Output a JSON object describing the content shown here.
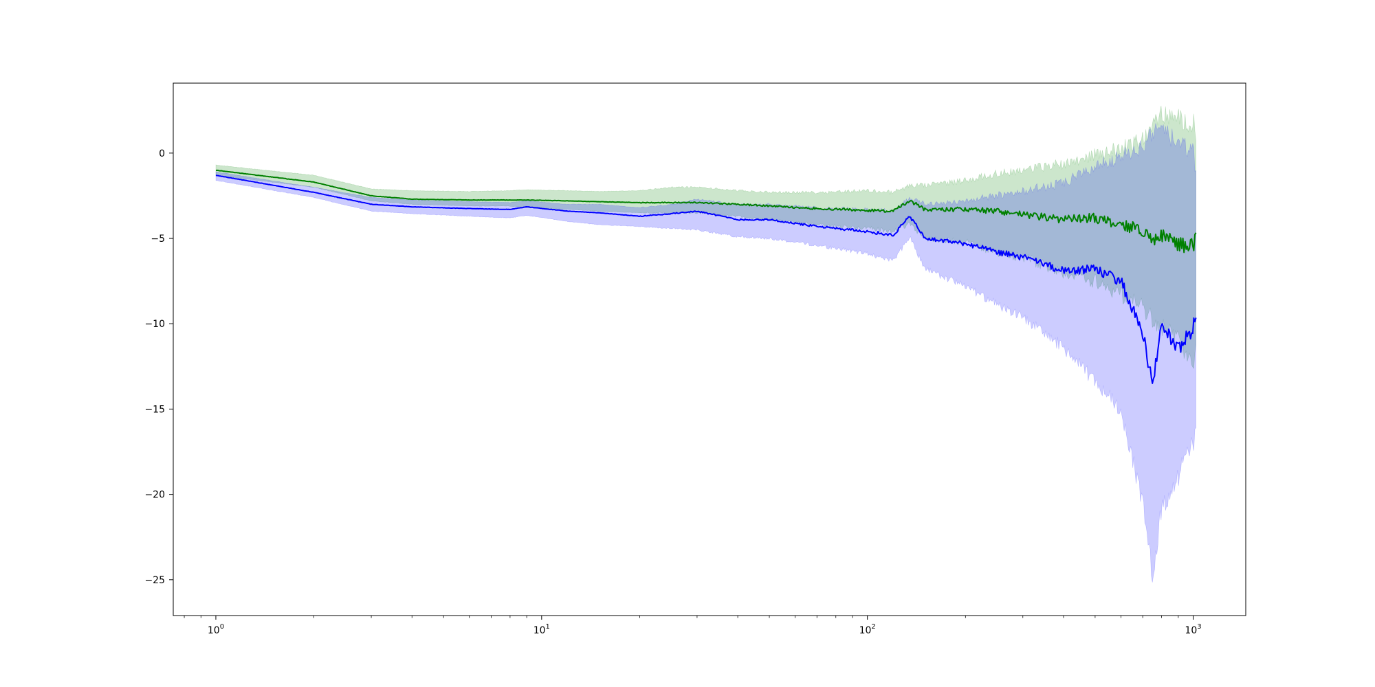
{
  "chart_data": {
    "type": "line",
    "title": "",
    "xlabel": "",
    "ylabel": "",
    "xscale": "log",
    "xlim": [
      0.74,
      1450
    ],
    "ylim": [
      -27.1,
      4.1
    ],
    "grid": false,
    "legend": "none",
    "x_ticks": [
      {
        "value": 1,
        "base": "10",
        "exp": "0"
      },
      {
        "value": 10,
        "base": "10",
        "exp": "1"
      },
      {
        "value": 100,
        "base": "10",
        "exp": "2"
      },
      {
        "value": 1000,
        "base": "10",
        "exp": "3"
      }
    ],
    "y_ticks": [
      {
        "value": 0,
        "label": "0"
      },
      {
        "value": -5,
        "label": "−5"
      },
      {
        "value": -10,
        "label": "−10"
      },
      {
        "value": -15,
        "label": "−15"
      },
      {
        "value": -20,
        "label": "−20"
      },
      {
        "value": -25,
        "label": "−25"
      }
    ],
    "x": [
      1,
      2,
      3,
      4,
      6,
      8,
      9,
      12,
      15,
      20,
      25,
      30,
      40,
      50,
      70,
      100,
      120,
      135,
      150,
      200,
      250,
      300,
      400,
      500,
      600,
      700,
      750,
      800,
      900,
      1000,
      1020
    ],
    "series": [
      {
        "color": "#008000",
        "band_color": "#008000",
        "band_opacity": 0.2,
        "values": [
          -1.0,
          -1.7,
          -2.5,
          -2.7,
          -2.75,
          -2.75,
          -2.75,
          -2.8,
          -2.85,
          -2.9,
          -2.9,
          -2.9,
          -3.0,
          -3.1,
          -3.25,
          -3.35,
          -3.4,
          -2.8,
          -3.3,
          -3.3,
          -3.4,
          -3.6,
          -3.9,
          -3.8,
          -4.2,
          -4.5,
          -5.2,
          -4.8,
          -5.3,
          -5.5,
          -5.0
        ],
        "upper": [
          -0.7,
          -1.3,
          -2.1,
          -2.2,
          -2.25,
          -2.2,
          -2.15,
          -2.2,
          -2.25,
          -2.2,
          -2.0,
          -2.0,
          -2.2,
          -2.3,
          -2.3,
          -2.2,
          -2.3,
          -1.9,
          -1.9,
          -1.6,
          -1.2,
          -1.0,
          -0.6,
          -0.1,
          0.3,
          0.8,
          1.6,
          2.3,
          2.0,
          1.8,
          1.2
        ],
        "lower": [
          -1.3,
          -2.0,
          -2.8,
          -3.0,
          -3.1,
          -3.1,
          -3.2,
          -3.3,
          -3.4,
          -3.5,
          -3.5,
          -3.5,
          -3.7,
          -3.9,
          -4.2,
          -4.4,
          -4.6,
          -4.1,
          -5.0,
          -5.2,
          -5.9,
          -6.1,
          -7.0,
          -7.5,
          -8.3,
          -9.0,
          -9.7,
          -10.2,
          -11.0,
          -12.2,
          -11.5
        ]
      },
      {
        "color": "#0000ff",
        "band_color": "#0000ff",
        "band_opacity": 0.2,
        "values": [
          -1.3,
          -2.3,
          -3.0,
          -3.15,
          -3.25,
          -3.3,
          -3.15,
          -3.4,
          -3.5,
          -3.7,
          -3.55,
          -3.4,
          -3.9,
          -3.9,
          -4.3,
          -4.6,
          -4.8,
          -3.7,
          -5.0,
          -5.3,
          -5.8,
          -6.1,
          -6.9,
          -6.8,
          -7.5,
          -10.5,
          -13.6,
          -10.0,
          -11.5,
          -10.3,
          -9.5
        ],
        "upper": [
          -1.1,
          -2.0,
          -2.6,
          -2.75,
          -2.85,
          -2.9,
          -2.8,
          -3.0,
          -3.0,
          -3.2,
          -3.0,
          -2.7,
          -3.0,
          -3.0,
          -3.2,
          -3.3,
          -3.4,
          -2.6,
          -3.0,
          -2.8,
          -2.5,
          -2.2,
          -1.8,
          -0.8,
          -0.2,
          0.4,
          1.2,
          1.3,
          0.6,
          0.0,
          -0.8
        ],
        "lower": [
          -1.6,
          -2.6,
          -3.4,
          -3.55,
          -3.7,
          -3.8,
          -3.65,
          -4.0,
          -4.2,
          -4.3,
          -4.4,
          -4.5,
          -4.9,
          -5.0,
          -5.4,
          -5.9,
          -6.3,
          -4.9,
          -6.8,
          -7.8,
          -8.9,
          -9.6,
          -11.4,
          -13.4,
          -15.0,
          -20.5,
          -24.8,
          -20.8,
          -18.9,
          -17.0,
          -16.5
        ]
      }
    ]
  }
}
